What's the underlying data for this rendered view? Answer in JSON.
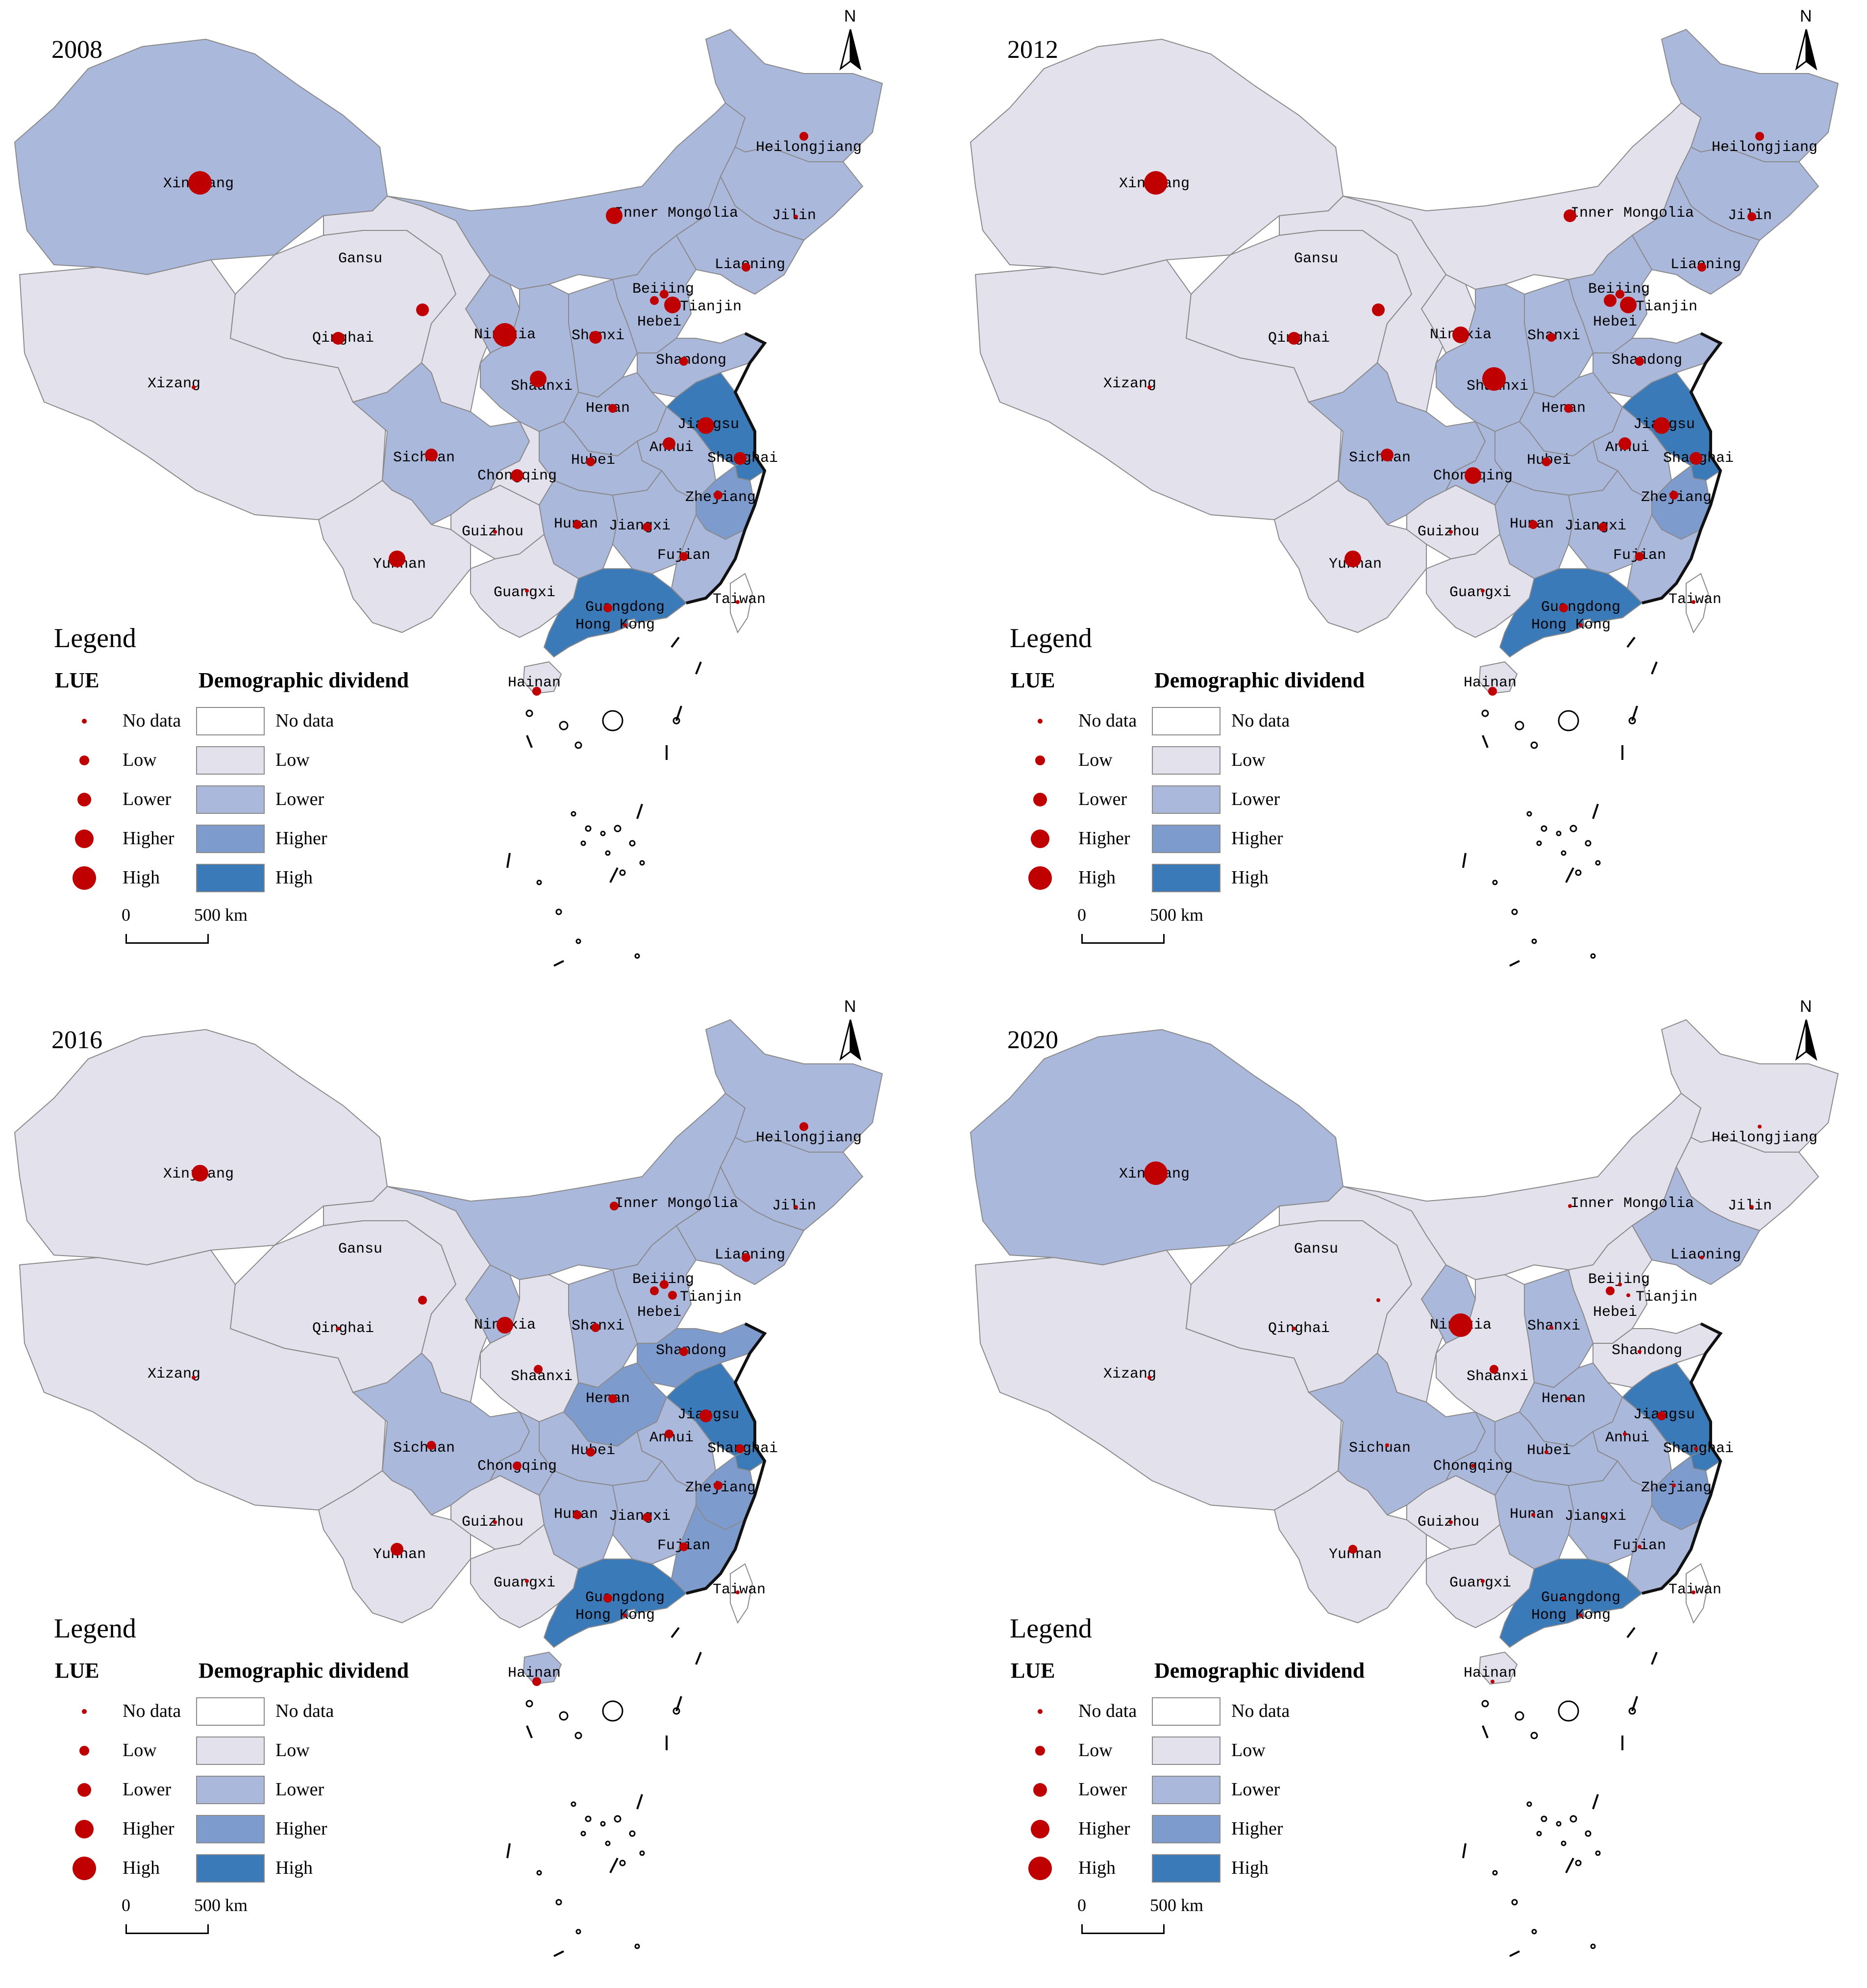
{
  "colors": {
    "no_data": "#ffffff",
    "low": "#e2e1ec",
    "lower": "#aab8dc",
    "higher": "#7d9ccd",
    "high": "#3a7ab9",
    "dot": "#c00000",
    "border": "#8a8a8a"
  },
  "legend": {
    "title": "Legend",
    "lue_title": "LUE",
    "dd_title": "Demographic dividend",
    "levels": [
      "No data",
      "Low",
      "Lower",
      "Higher",
      "High"
    ],
    "scale_zero": "0",
    "scale_label": "500 km"
  },
  "north_label": "N",
  "provinces": [
    "Xinjiang",
    "Xizang",
    "Qinghai",
    "Gansu",
    "Inner Mongolia",
    "Heilongjiang",
    "Jilin",
    "Liaoning",
    "Beijing",
    "Tianjin",
    "Hebei",
    "Shanxi",
    "Ningxia",
    "Shaanxi",
    "Shandong",
    "Henan",
    "Jiangsu",
    "Anhui",
    "Shanghai",
    "Hubei",
    "Sichuan",
    "Chongqing",
    "Zhejiang",
    "Hunan",
    "Jiangxi",
    "Guizhou",
    "Yunnan",
    "Fujian",
    "Guangxi",
    "Guangdong",
    "Hong Kong",
    "Taiwan",
    "Hainan"
  ],
  "panels": [
    {
      "year": "2008",
      "dd": {
        "Xinjiang": "lower",
        "Xizang": "low",
        "Qinghai": "low",
        "Gansu": "low",
        "Inner Mongolia": "lower",
        "Heilongjiang": "lower",
        "Jilin": "lower",
        "Liaoning": "lower",
        "Beijing": "higher",
        "Tianjin": "lower",
        "Hebei": "lower",
        "Shanxi": "lower",
        "Ningxia": "lower",
        "Shaanxi": "lower",
        "Shandong": "lower",
        "Henan": "lower",
        "Jiangsu": "high",
        "Anhui": "lower",
        "Shanghai": "high",
        "Hubei": "lower",
        "Sichuan": "lower",
        "Chongqing": "low",
        "Zhejiang": "higher",
        "Hunan": "lower",
        "Jiangxi": "lower",
        "Guizhou": "low",
        "Yunnan": "low",
        "Fujian": "lower",
        "Guangxi": "low",
        "Guangdong": "high",
        "Hong Kong": "no_data",
        "Taiwan": "no_data",
        "Hainan": "low"
      },
      "lue": {
        "Xinjiang": "high",
        "Xizang": "nodata",
        "Qinghai": "lower",
        "Gansu": "lower",
        "Inner Mongolia": "higher",
        "Heilongjiang": "low",
        "Jilin": "nodata",
        "Liaoning": "low",
        "Beijing": "low",
        "Tianjin": "higher",
        "Hebei": "low",
        "Shanxi": "lower",
        "Ningxia": "high",
        "Shaanxi": "higher",
        "Shandong": "low",
        "Henan": "low",
        "Jiangsu": "higher",
        "Anhui": "lower",
        "Shanghai": "lower",
        "Hubei": "low",
        "Sichuan": "lower",
        "Chongqing": "lower",
        "Zhejiang": "low",
        "Hunan": "low",
        "Jiangxi": "low",
        "Guizhou": "nodata",
        "Yunnan": "higher",
        "Fujian": "low",
        "Guangxi": "nodata",
        "Guangdong": "low",
        "Hong Kong": "nodata",
        "Taiwan": "nodata",
        "Hainan": "low"
      }
    },
    {
      "year": "2012",
      "dd": {
        "Xinjiang": "low",
        "Xizang": "low",
        "Qinghai": "low",
        "Gansu": "low",
        "Inner Mongolia": "low",
        "Heilongjiang": "lower",
        "Jilin": "lower",
        "Liaoning": "lower",
        "Beijing": "high",
        "Tianjin": "lower",
        "Hebei": "lower",
        "Shanxi": "lower",
        "Ningxia": "low",
        "Shaanxi": "lower",
        "Shandong": "lower",
        "Henan": "lower",
        "Jiangsu": "high",
        "Anhui": "lower",
        "Shanghai": "high",
        "Hubei": "lower",
        "Sichuan": "lower",
        "Chongqing": "lower",
        "Zhejiang": "higher",
        "Hunan": "lower",
        "Jiangxi": "lower",
        "Guizhou": "low",
        "Yunnan": "low",
        "Fujian": "lower",
        "Guangxi": "low",
        "Guangdong": "high",
        "Hong Kong": "no_data",
        "Taiwan": "no_data",
        "Hainan": "low"
      },
      "lue": {
        "Xinjiang": "high",
        "Xizang": "nodata",
        "Qinghai": "lower",
        "Gansu": "lower",
        "Inner Mongolia": "lower",
        "Heilongjiang": "low",
        "Jilin": "low",
        "Liaoning": "low",
        "Beijing": "lower",
        "Tianjin": "higher",
        "Hebei": "low",
        "Shanxi": "low",
        "Ningxia": "higher",
        "Shaanxi": "high",
        "Shandong": "low",
        "Henan": "low",
        "Jiangsu": "higher",
        "Anhui": "lower",
        "Shanghai": "lower",
        "Hubei": "low",
        "Sichuan": "lower",
        "Chongqing": "higher",
        "Zhejiang": "low",
        "Hunan": "low",
        "Jiangxi": "low",
        "Guizhou": "nodata",
        "Yunnan": "higher",
        "Fujian": "low",
        "Guangxi": "nodata",
        "Guangdong": "low",
        "Hong Kong": "nodata",
        "Taiwan": "nodata",
        "Hainan": "low"
      }
    },
    {
      "year": "2016",
      "dd": {
        "Xinjiang": "low",
        "Xizang": "low",
        "Qinghai": "low",
        "Gansu": "low",
        "Inner Mongolia": "lower",
        "Heilongjiang": "lower",
        "Jilin": "lower",
        "Liaoning": "lower",
        "Beijing": "high",
        "Tianjin": "lower",
        "Hebei": "lower",
        "Shanxi": "lower",
        "Ningxia": "lower",
        "Shaanxi": "low",
        "Shandong": "higher",
        "Henan": "higher",
        "Jiangsu": "high",
        "Anhui": "lower",
        "Shanghai": "high",
        "Hubei": "lower",
        "Sichuan": "lower",
        "Chongqing": "lower",
        "Zhejiang": "higher",
        "Hunan": "lower",
        "Jiangxi": "lower",
        "Guizhou": "low",
        "Yunnan": "low",
        "Fujian": "higher",
        "Guangxi": "low",
        "Guangdong": "high",
        "Hong Kong": "no_data",
        "Taiwan": "no_data",
        "Hainan": "lower"
      },
      "lue": {
        "Xinjiang": "higher",
        "Xizang": "nodata",
        "Qinghai": "nodata",
        "Gansu": "low",
        "Inner Mongolia": "low",
        "Heilongjiang": "low",
        "Jilin": "nodata",
        "Liaoning": "low",
        "Beijing": "low",
        "Tianjin": "low",
        "Hebei": "low",
        "Shanxi": "low",
        "Ningxia": "higher",
        "Shaanxi": "low",
        "Shandong": "low",
        "Henan": "low",
        "Jiangsu": "lower",
        "Anhui": "low",
        "Shanghai": "low",
        "Hubei": "low",
        "Sichuan": "low",
        "Chongqing": "low",
        "Zhejiang": "low",
        "Hunan": "low",
        "Jiangxi": "low",
        "Guizhou": "nodata",
        "Yunnan": "lower",
        "Fujian": "low",
        "Guangxi": "nodata",
        "Guangdong": "low",
        "Hong Kong": "nodata",
        "Taiwan": "nodata",
        "Hainan": "low"
      }
    },
    {
      "year": "2020",
      "dd": {
        "Xinjiang": "lower",
        "Xizang": "low",
        "Qinghai": "low",
        "Gansu": "low",
        "Inner Mongolia": "low",
        "Heilongjiang": "low",
        "Jilin": "low",
        "Liaoning": "lower",
        "Beijing": "higher",
        "Tianjin": "low",
        "Hebei": "low",
        "Shanxi": "lower",
        "Ningxia": "lower",
        "Shaanxi": "low",
        "Shandong": "low",
        "Henan": "lower",
        "Jiangsu": "high",
        "Anhui": "lower",
        "Shanghai": "high",
        "Hubei": "lower",
        "Sichuan": "lower",
        "Chongqing": "lower",
        "Zhejiang": "higher",
        "Hunan": "lower",
        "Jiangxi": "lower",
        "Guizhou": "low",
        "Yunnan": "low",
        "Fujian": "lower",
        "Guangxi": "low",
        "Guangdong": "high",
        "Hong Kong": "no_data",
        "Taiwan": "no_data",
        "Hainan": "low"
      },
      "lue": {
        "Xinjiang": "high",
        "Xizang": "nodata",
        "Qinghai": "nodata",
        "Gansu": "nodata",
        "Inner Mongolia": "nodata",
        "Heilongjiang": "nodata",
        "Jilin": "nodata",
        "Liaoning": "nodata",
        "Beijing": "low",
        "Tianjin": "nodata",
        "Hebei": "nodata",
        "Shanxi": "nodata",
        "Ningxia": "high",
        "Shaanxi": "low",
        "Shandong": "nodata",
        "Henan": "nodata",
        "Jiangsu": "low",
        "Anhui": "nodata",
        "Shanghai": "nodata",
        "Hubei": "nodata",
        "Sichuan": "nodata",
        "Chongqing": "nodata",
        "Zhejiang": "nodata",
        "Hunan": "nodata",
        "Jiangxi": "nodata",
        "Guizhou": "nodata",
        "Yunnan": "low",
        "Fujian": "nodata",
        "Guangxi": "nodata",
        "Guangdong": "nodata",
        "Hong Kong": "nodata",
        "Taiwan": "nodata",
        "Hainan": "nodata"
      }
    }
  ]
}
